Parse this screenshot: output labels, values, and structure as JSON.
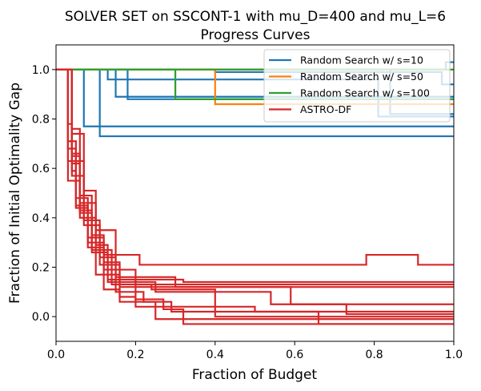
{
  "chart_data": {
    "type": "line",
    "title_line1": "SOLVER SET on SSCONT-1 with mu_D=400 and mu_L=6",
    "title_line2": "Progress Curves",
    "xlabel": "Fraction of Budget",
    "ylabel": "Fraction of Initial Optimality Gap",
    "xlim": [
      0,
      1
    ],
    "ylim": [
      -0.1,
      1.1
    ],
    "xticks": [
      0,
      0.2,
      0.4,
      0.6,
      0.8,
      1.0
    ],
    "xtick_labels": [
      "0.0",
      "0.2",
      "0.4",
      "0.6",
      "0.8",
      "1.0"
    ],
    "yticks": [
      0,
      0.2,
      0.4,
      0.6,
      0.8,
      1.0
    ],
    "ytick_labels": [
      "0.0",
      "0.2",
      "0.4",
      "0.6",
      "0.8",
      "1.0"
    ],
    "grid": false,
    "legend_position": "top-right",
    "step": true,
    "series": [
      {
        "name": "Random Search w/ s=10",
        "color": "#1f77b4",
        "runs": [
          [
            [
              0,
              1.0
            ],
            [
              0.07,
              1.0
            ],
            [
              0.07,
              0.77
            ],
            [
              1.0,
              0.77
            ]
          ],
          [
            [
              0,
              1.0
            ],
            [
              0.11,
              1.0
            ],
            [
              0.11,
              0.73
            ],
            [
              1.0,
              0.73
            ]
          ],
          [
            [
              0,
              1.0
            ],
            [
              0.13,
              1.0
            ],
            [
              0.13,
              0.96
            ],
            [
              0.81,
              0.96
            ],
            [
              0.81,
              0.81
            ],
            [
              1.0,
              0.81
            ]
          ],
          [
            [
              0,
              1.0
            ],
            [
              0.15,
              1.0
            ],
            [
              0.15,
              0.89
            ],
            [
              1.0,
              0.89
            ]
          ],
          [
            [
              0,
              1.0
            ],
            [
              0.18,
              1.0
            ],
            [
              0.18,
              0.88
            ],
            [
              1.0,
              0.88
            ]
          ],
          [
            [
              0,
              1.0
            ],
            [
              0.4,
              1.0
            ],
            [
              0.4,
              0.99
            ],
            [
              0.97,
              0.99
            ],
            [
              0.97,
              0.94
            ],
            [
              1.0,
              0.94
            ]
          ],
          [
            [
              0,
              1.0
            ],
            [
              0.84,
              1.0
            ],
            [
              0.84,
              0.82
            ],
            [
              1.0,
              0.82
            ]
          ],
          [
            [
              0,
              1.0
            ],
            [
              0.98,
              1.0
            ],
            [
              0.98,
              1.03
            ],
            [
              1.0,
              1.03
            ]
          ]
        ]
      },
      {
        "name": "Random Search w/ s=50",
        "color": "#ff7f0e",
        "runs": [
          [
            [
              0,
              1.0
            ],
            [
              0.4,
              1.0
            ],
            [
              0.4,
              0.86
            ],
            [
              1.0,
              0.86
            ]
          ],
          [
            [
              0,
              1.0
            ],
            [
              1.0,
              1.0
            ]
          ]
        ]
      },
      {
        "name": "Random Search w/ s=100",
        "color": "#2ca02c",
        "runs": [
          [
            [
              0,
              1.0
            ],
            [
              0.3,
              1.0
            ],
            [
              0.3,
              0.88
            ],
            [
              1.0,
              0.88
            ]
          ],
          [
            [
              0,
              1.0
            ],
            [
              1.0,
              1.0
            ]
          ]
        ]
      },
      {
        "name": "ASTRO-DF",
        "color": "#d62728",
        "runs": [
          [
            [
              0,
              1.0
            ],
            [
              0.03,
              1.0
            ],
            [
              0.03,
              0.78
            ],
            [
              0.04,
              0.78
            ],
            [
              0.04,
              0.57
            ],
            [
              0.07,
              0.57
            ],
            [
              0.07,
              0.37
            ],
            [
              0.11,
              0.37
            ],
            [
              0.11,
              0.21
            ],
            [
              0.16,
              0.21
            ],
            [
              0.16,
              0.15
            ],
            [
              0.32,
              0.15
            ],
            [
              0.32,
              0.14
            ],
            [
              1.0,
              0.14
            ]
          ],
          [
            [
              0,
              1.0
            ],
            [
              0.03,
              1.0
            ],
            [
              0.03,
              0.71
            ],
            [
              0.05,
              0.71
            ],
            [
              0.05,
              0.44
            ],
            [
              0.08,
              0.44
            ],
            [
              0.08,
              0.28
            ],
            [
              0.12,
              0.28
            ],
            [
              0.12,
              0.19
            ],
            [
              0.2,
              0.19
            ],
            [
              0.2,
              0.13
            ],
            [
              0.5,
              0.13
            ],
            [
              0.5,
              0.13
            ],
            [
              1.0,
              0.13
            ]
          ],
          [
            [
              0,
              1.0
            ],
            [
              0.04,
              1.0
            ],
            [
              0.04,
              0.65
            ],
            [
              0.06,
              0.65
            ],
            [
              0.06,
              0.49
            ],
            [
              0.09,
              0.49
            ],
            [
              0.09,
              0.33
            ],
            [
              0.12,
              0.33
            ],
            [
              0.12,
              0.25
            ],
            [
              0.21,
              0.25
            ],
            [
              0.21,
              0.21
            ],
            [
              0.78,
              0.21
            ],
            [
              0.78,
              0.25
            ],
            [
              0.91,
              0.25
            ],
            [
              0.91,
              0.21
            ],
            [
              1.0,
              0.21
            ]
          ],
          [
            [
              0,
              1.0
            ],
            [
              0.04,
              1.0
            ],
            [
              0.04,
              0.59
            ],
            [
              0.05,
              0.59
            ],
            [
              0.05,
              0.45
            ],
            [
              0.08,
              0.45
            ],
            [
              0.08,
              0.3
            ],
            [
              0.12,
              0.3
            ],
            [
              0.12,
              0.22
            ],
            [
              0.16,
              0.22
            ],
            [
              0.16,
              0.12
            ],
            [
              0.26,
              0.12
            ],
            [
              0.26,
              0.12
            ],
            [
              1.0,
              0.12
            ]
          ],
          [
            [
              0,
              1.0
            ],
            [
              0.03,
              1.0
            ],
            [
              0.03,
              0.55
            ],
            [
              0.06,
              0.55
            ],
            [
              0.06,
              0.4
            ],
            [
              0.1,
              0.4
            ],
            [
              0.1,
              0.17
            ],
            [
              0.16,
              0.17
            ],
            [
              0.16,
              0.08
            ],
            [
              0.2,
              0.08
            ],
            [
              0.2,
              0.04
            ],
            [
              0.5,
              0.04
            ],
            [
              0.5,
              0.02
            ],
            [
              1.0,
              0.02
            ]
          ],
          [
            [
              0,
              1.0
            ],
            [
              0.04,
              1.0
            ],
            [
              0.04,
              0.74
            ],
            [
              0.07,
              0.74
            ],
            [
              0.07,
              0.51
            ],
            [
              0.1,
              0.51
            ],
            [
              0.1,
              0.35
            ],
            [
              0.15,
              0.35
            ],
            [
              0.15,
              0.1
            ],
            [
              0.22,
              0.1
            ],
            [
              0.22,
              0.06
            ],
            [
              0.29,
              0.06
            ],
            [
              0.29,
              0.02
            ],
            [
              0.66,
              0.02
            ],
            [
              0.66,
              -0.01
            ],
            [
              1.0,
              -0.01
            ]
          ],
          [
            [
              0,
              1.0
            ],
            [
              0.04,
              1.0
            ],
            [
              0.04,
              0.62
            ],
            [
              0.06,
              0.62
            ],
            [
              0.06,
              0.43
            ],
            [
              0.09,
              0.43
            ],
            [
              0.09,
              0.26
            ],
            [
              0.13,
              0.26
            ],
            [
              0.13,
              0.15
            ],
            [
              0.2,
              0.15
            ],
            [
              0.2,
              0.07
            ],
            [
              0.27,
              0.07
            ],
            [
              0.27,
              0.03
            ],
            [
              0.32,
              0.03
            ],
            [
              0.32,
              -0.03
            ],
            [
              1.0,
              -0.03
            ]
          ],
          [
            [
              0,
              1.0
            ],
            [
              0.03,
              1.0
            ],
            [
              0.03,
              0.68
            ],
            [
              0.05,
              0.68
            ],
            [
              0.05,
              0.48
            ],
            [
              0.08,
              0.48
            ],
            [
              0.08,
              0.32
            ],
            [
              0.12,
              0.32
            ],
            [
              0.12,
              0.11
            ],
            [
              0.16,
              0.11
            ],
            [
              0.16,
              0.06
            ],
            [
              0.25,
              0.06
            ],
            [
              0.25,
              -0.01
            ],
            [
              0.66,
              -0.01
            ],
            [
              0.66,
              -0.03
            ],
            [
              1.0,
              -0.03
            ]
          ],
          [
            [
              0,
              1.0
            ],
            [
              0.04,
              1.0
            ],
            [
              0.04,
              0.76
            ],
            [
              0.06,
              0.76
            ],
            [
              0.06,
              0.46
            ],
            [
              0.1,
              0.46
            ],
            [
              0.1,
              0.29
            ],
            [
              0.13,
              0.29
            ],
            [
              0.13,
              0.14
            ],
            [
              0.25,
              0.14
            ],
            [
              0.25,
              0.1
            ],
            [
              0.54,
              0.1
            ],
            [
              0.54,
              0.05
            ],
            [
              0.73,
              0.05
            ],
            [
              0.73,
              0.01
            ],
            [
              1.0,
              0.01
            ]
          ],
          [
            [
              0,
              1.0
            ],
            [
              0.03,
              1.0
            ],
            [
              0.03,
              0.63
            ],
            [
              0.07,
              0.63
            ],
            [
              0.07,
              0.39
            ],
            [
              0.11,
              0.39
            ],
            [
              0.11,
              0.24
            ],
            [
              0.15,
              0.24
            ],
            [
              0.15,
              0.16
            ],
            [
              0.3,
              0.16
            ],
            [
              0.3,
              0.12
            ],
            [
              0.59,
              0.12
            ],
            [
              0.59,
              0.05
            ],
            [
              1.0,
              0.05
            ]
          ],
          [
            [
              0,
              1.0
            ],
            [
              0.04,
              1.0
            ],
            [
              0.04,
              0.66
            ],
            [
              0.06,
              0.66
            ],
            [
              0.06,
              0.42
            ],
            [
              0.09,
              0.42
            ],
            [
              0.09,
              0.27
            ],
            [
              0.14,
              0.27
            ],
            [
              0.14,
              0.13
            ],
            [
              0.24,
              0.13
            ],
            [
              0.24,
              0.11
            ],
            [
              0.4,
              0.11
            ],
            [
              0.4,
              0.0
            ],
            [
              0.69,
              0.0
            ],
            [
              0.69,
              0.0
            ],
            [
              1.0,
              0.0
            ]
          ]
        ]
      }
    ]
  }
}
